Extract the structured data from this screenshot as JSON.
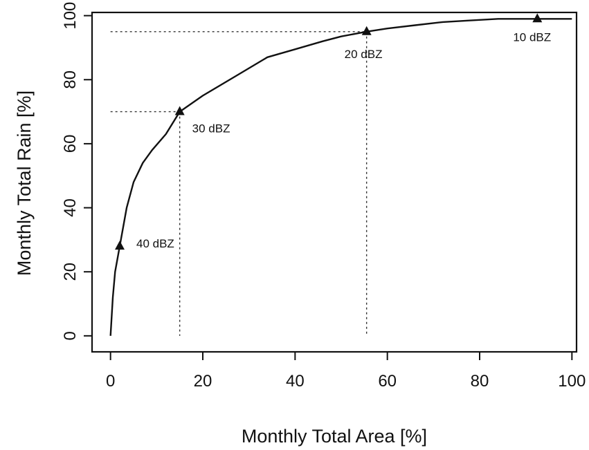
{
  "chart_data": {
    "type": "line",
    "title": "",
    "xlabel": "Monthly Total Area [%]",
    "ylabel": "Monthly Total Rain [%]",
    "xlim": [
      -4,
      101
    ],
    "ylim": [
      -5,
      101
    ],
    "xticks": [
      0,
      20,
      40,
      60,
      80,
      100
    ],
    "yticks": [
      0,
      20,
      40,
      60,
      80,
      100
    ],
    "xtick_labels": [
      "0",
      "20",
      "40",
      "60",
      "80",
      "100"
    ],
    "ytick_labels": [
      "0",
      "20",
      "40",
      "60",
      "80",
      "100"
    ],
    "grid": false,
    "legend": "none",
    "series": [
      {
        "x": [
          0,
          0.5,
          1.0,
          2.0,
          3.5,
          5.0,
          7.0,
          9.0,
          12.0,
          15.0,
          20.0,
          27.0,
          34.0,
          40.0,
          46.0,
          50.0,
          55.5,
          60.0,
          66.0,
          72.0,
          78.0,
          84.0,
          90.0,
          93.0,
          97.0,
          100.0
        ],
        "y": [
          0,
          12,
          20,
          28,
          40,
          48,
          54,
          58,
          63,
          70,
          75,
          81,
          87,
          89.5,
          92,
          93.5,
          95,
          96,
          97,
          98,
          98.5,
          99,
          99,
          99,
          99,
          99
        ]
      }
    ],
    "markers": [
      {
        "x": 2.0,
        "y": 28,
        "label": "40 dBZ"
      },
      {
        "x": 15.0,
        "y": 70,
        "label": "30 dBZ"
      },
      {
        "x": 55.5,
        "y": 95,
        "label": "20 dBZ"
      },
      {
        "x": 92.5,
        "y": 99,
        "label": "10 dBZ"
      }
    ],
    "reference_lines": [
      {
        "x": 15.0,
        "y": 70
      },
      {
        "x": 55.5,
        "y": 95
      }
    ]
  }
}
